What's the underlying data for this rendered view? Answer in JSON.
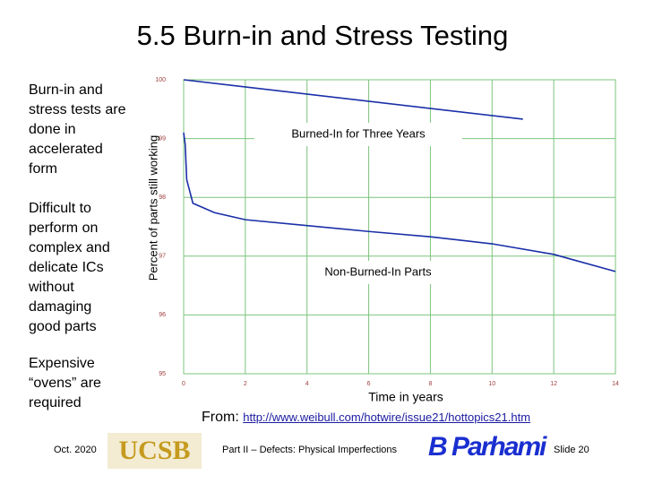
{
  "title": "5.5  Burn-in and Stress Testing",
  "bullets": [
    "Burn-in and stress tests are done in accelerated form",
    "Difficult to perform on complex and delicate ICs without damaging good parts",
    "Expensive “ovens” are required"
  ],
  "chart_data": {
    "type": "line",
    "ylabel": "Percent of parts still working",
    "xlabel": "Time in years",
    "xlim": [
      0,
      14
    ],
    "ylim": [
      95,
      100
    ],
    "xticks": [
      0,
      2,
      4,
      6,
      8,
      10,
      12,
      14
    ],
    "yticks": [
      95,
      96,
      97,
      98,
      99,
      100
    ],
    "grid": true,
    "series": [
      {
        "name": "Burned-In for Three Years",
        "color": "#1a2fa8",
        "x": [
          0,
          11
        ],
        "values": [
          100,
          99.33
        ]
      },
      {
        "name": "Non-Burned-In Parts",
        "color": "#1a2fa8",
        "x": [
          0,
          0.05,
          0.1,
          0.3,
          1,
          2,
          4,
          6,
          8,
          10,
          12,
          14
        ],
        "values": [
          99.1,
          98.9,
          98.3,
          97.9,
          97.74,
          97.62,
          97.52,
          97.42,
          97.33,
          97.21,
          97.03,
          96.74
        ]
      }
    ]
  },
  "source": {
    "prefix": "From:",
    "link": "http://www.weibull.com/hotwire/issue21/hottopics21.htm"
  },
  "footer": {
    "date": "Oct. 2020",
    "logo_left": "UCSB",
    "part": "Part II – Defects: Physical Imperfections",
    "logo_right": "B Parhami",
    "slide": "Slide 20"
  }
}
